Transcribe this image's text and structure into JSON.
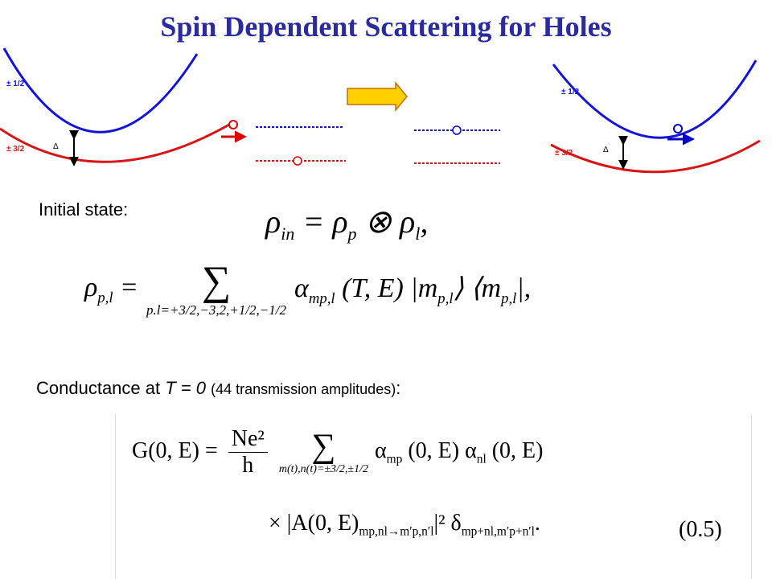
{
  "title": "Spin Dependent Scattering for Holes",
  "diagrams": [
    {
      "labels": [
        "± 1/2",
        "± 3/2",
        "Δ"
      ]
    },
    {
      "labels": [
        "± 1/2",
        "± 3/2",
        "Δ"
      ]
    }
  ],
  "initial_state": {
    "label": "Initial state:",
    "equation": [
      {
        "base": "ρ",
        "sub": "in"
      },
      " = ",
      {
        "base": "ρ",
        "sub": "p"
      },
      " ⊗ ",
      {
        "base": "ρ",
        "sub": "l"
      },
      ","
    ]
  },
  "density": {
    "lhs": [
      {
        "base": "ρ",
        "sub": "p,l"
      },
      " ="
    ],
    "sum": "∑",
    "sum_range": "p.l=+3/2,−3,2,+1/2,−1/2",
    "rhs": [
      {
        "base": "α",
        "sub": "mp,l"
      },
      " (T, E) ",
      {
        "base": "|m",
        "sub": "p,l"
      },
      "⟩ ⟨",
      {
        "base": "m",
        "sub": "p,l"
      },
      "|,"
    ]
  },
  "conductance": {
    "text": "Conductance at ",
    "variable": "T = 0",
    "note": "(44 transmission amplitudes)",
    "end": ":"
  },
  "formula": {
    "line1": [
      "G(0, E)",
      " = ",
      {
        "num": "Ne²",
        "den": "h"
      }
    ],
    "sum": "∑",
    "sum_range": "m(t),n(t)=±3/2,±1/2",
    "line1_rhs": [
      {
        "base": "α",
        "sub": "mp"
      },
      " (0, E) ",
      {
        "base": "α",
        "sub": "nl"
      },
      " (0, E)"
    ],
    "line2": [
      "× ",
      {
        "base": "|A(0, E)",
        "sub": "mp,nl→m′p,n′l"
      },
      "|²",
      " ",
      {
        "base": "δ",
        "sub": "mp+nl,m′p+n′l"
      },
      "."
    ],
    "number": "(0.5)"
  }
}
